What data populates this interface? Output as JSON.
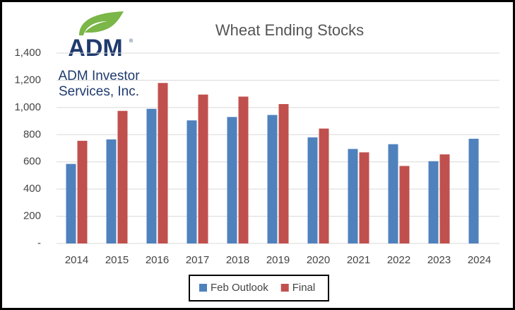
{
  "chart_data": {
    "type": "bar",
    "title": "Wheat Ending Stocks",
    "categories": [
      "2014",
      "2015",
      "2016",
      "2017",
      "2018",
      "2019",
      "2020",
      "2021",
      "2022",
      "2023",
      "2024"
    ],
    "series": [
      {
        "name": "Feb Outlook",
        "color": "#4f81bd",
        "values": [
          585,
          765,
          990,
          905,
          930,
          945,
          780,
          695,
          730,
          605,
          770
        ]
      },
      {
        "name": "Final",
        "color": "#c0504d",
        "values": [
          755,
          975,
          1180,
          1095,
          1080,
          1025,
          845,
          670,
          570,
          655,
          null
        ]
      }
    ],
    "ylim": [
      0,
      1400
    ],
    "yticks": [
      {
        "value": 0,
        "label": "-"
      },
      200,
      400,
      600,
      800,
      {
        "value": 1000,
        "label": "1,000"
      },
      {
        "value": 1200,
        "label": "1,200"
      },
      {
        "value": 1400,
        "label": "1,400"
      }
    ],
    "grid": true,
    "legend": "bottom"
  },
  "logo": {
    "wordmark": "ADM",
    "mark": "®",
    "lines": [
      "ADM Investor",
      "Services, Inc."
    ]
  }
}
